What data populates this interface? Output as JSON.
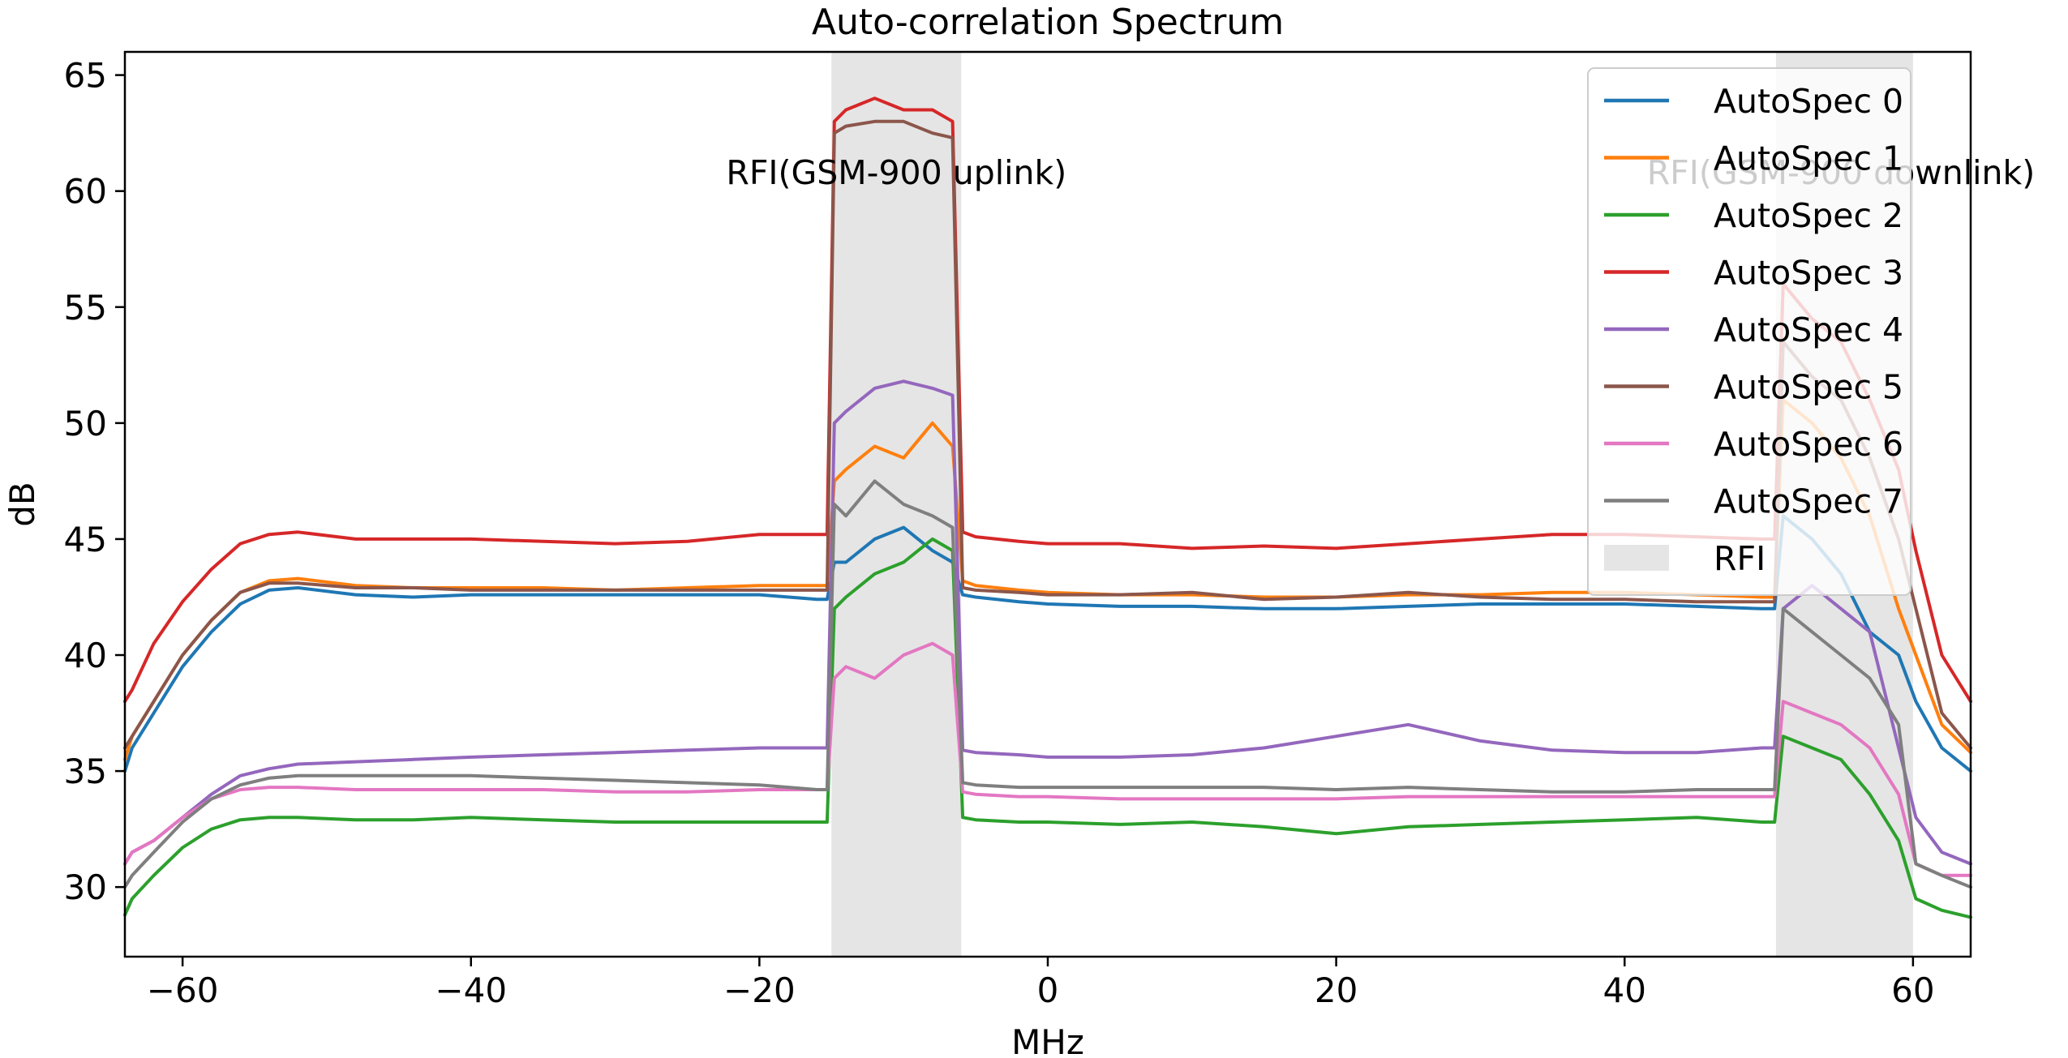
{
  "chart_data": {
    "type": "line",
    "title": "Auto-correlation Spectrum",
    "xlabel": "MHz",
    "ylabel": "dB",
    "xlim": [
      -64,
      64
    ],
    "ylim": [
      27,
      66
    ],
    "xticks": [
      -60,
      -40,
      -20,
      0,
      20,
      40,
      60
    ],
    "yticks": [
      30,
      35,
      40,
      45,
      50,
      55,
      60,
      65
    ],
    "x_tick_labels": [
      "−60",
      "−40",
      "−20",
      "0",
      "20",
      "40",
      "60"
    ],
    "y_tick_labels": [
      "30",
      "35",
      "40",
      "45",
      "50",
      "55",
      "60",
      "65"
    ],
    "grid": false,
    "legend_position": "top-right",
    "rfi_label": "RFI",
    "rfi_color": "#e5e5e5",
    "shaded_regions": [
      {
        "name": "RFI",
        "x_range": [
          -15,
          -6
        ]
      },
      {
        "name": "RFI",
        "x_range": [
          50.5,
          60
        ]
      }
    ],
    "annotations": [
      {
        "text": "RFI(GSM-900 uplink)",
        "x": -10.5,
        "y": 60.3
      },
      {
        "text": "RFI(GSM-900 downlink)",
        "x": 55,
        "y": 60.3
      }
    ],
    "x": [
      -64,
      -63.5,
      -62,
      -60,
      -58,
      -56,
      -54,
      -52,
      -48,
      -44,
      -40,
      -35,
      -30,
      -25,
      -20,
      -16,
      -15.3,
      -14.8,
      -14,
      -12,
      -10,
      -8,
      -6.6,
      -5.9,
      -5,
      -2,
      0,
      5,
      10,
      15,
      20,
      25,
      30,
      35,
      40,
      45,
      49.5,
      50.4,
      51,
      53,
      55,
      57,
      59,
      60.2,
      62,
      64
    ],
    "series": [
      {
        "name": "AutoSpec 0",
        "color": "#1f77b4",
        "values": [
          35,
          36,
          37.5,
          39.5,
          41,
          42.2,
          42.8,
          42.9,
          42.6,
          42.5,
          42.6,
          42.6,
          42.6,
          42.6,
          42.6,
          42.4,
          42.4,
          44,
          44,
          45,
          45.5,
          44.5,
          44,
          42.6,
          42.5,
          42.3,
          42.2,
          42.1,
          42.1,
          42.0,
          42.0,
          42.1,
          42.2,
          42.2,
          42.2,
          42.1,
          42.0,
          42.0,
          46,
          45,
          43.5,
          41,
          40,
          38,
          36,
          35
        ]
      },
      {
        "name": "AutoSpec 1",
        "color": "#ff7f0e",
        "values": [
          35.5,
          36.5,
          38,
          40,
          41.5,
          42.7,
          43.2,
          43.3,
          43,
          42.9,
          42.9,
          42.9,
          42.8,
          42.9,
          43.0,
          43.0,
          43.0,
          47.5,
          48,
          49,
          48.5,
          50,
          49,
          43.2,
          43.0,
          42.8,
          42.7,
          42.6,
          42.6,
          42.5,
          42.5,
          42.6,
          42.6,
          42.7,
          42.7,
          42.6,
          42.5,
          42.5,
          51,
          50,
          48.5,
          46,
          42,
          40,
          37,
          35.8
        ]
      },
      {
        "name": "AutoSpec 2",
        "color": "#2ca02c",
        "values": [
          28.8,
          29.5,
          30.5,
          31.7,
          32.5,
          32.9,
          33.0,
          33.0,
          32.9,
          32.9,
          33.0,
          32.9,
          32.8,
          32.8,
          32.8,
          32.8,
          32.8,
          42,
          42.5,
          43.5,
          44,
          45,
          44.5,
          33.0,
          32.9,
          32.8,
          32.8,
          32.7,
          32.8,
          32.6,
          32.3,
          32.6,
          32.7,
          32.8,
          32.9,
          33.0,
          32.8,
          32.8,
          36.5,
          36,
          35.5,
          34,
          32,
          29.5,
          29,
          28.7
        ]
      },
      {
        "name": "AutoSpec 3",
        "color": "#d62728",
        "values": [
          38,
          38.5,
          40.5,
          42.3,
          43.7,
          44.8,
          45.2,
          45.3,
          45.0,
          45.0,
          45.0,
          44.9,
          44.8,
          44.9,
          45.2,
          45.2,
          45.2,
          63,
          63.5,
          64,
          63.5,
          63.5,
          63,
          45.3,
          45.1,
          44.9,
          44.8,
          44.8,
          44.6,
          44.7,
          44.6,
          44.8,
          45.0,
          45.2,
          45.2,
          45.1,
          45.0,
          45.0,
          56,
          54.5,
          53.5,
          51,
          48,
          44.5,
          40,
          38
        ]
      },
      {
        "name": "AutoSpec 4",
        "color": "#9467bd",
        "values": [
          31,
          31.5,
          32,
          33,
          34,
          34.8,
          35.1,
          35.3,
          35.4,
          35.5,
          35.6,
          35.7,
          35.8,
          35.9,
          36.0,
          36.0,
          36.0,
          50,
          50.5,
          51.5,
          51.8,
          51.5,
          51.2,
          35.9,
          35.8,
          35.7,
          35.6,
          35.6,
          35.7,
          36.0,
          36.5,
          37.0,
          36.3,
          35.9,
          35.8,
          35.8,
          36.0,
          36.0,
          42,
          43,
          42,
          41,
          36,
          33,
          31.5,
          31
        ]
      },
      {
        "name": "AutoSpec 5",
        "color": "#8c564b",
        "values": [
          36,
          36.5,
          38,
          40,
          41.5,
          42.7,
          43.1,
          43.1,
          42.9,
          42.9,
          42.8,
          42.8,
          42.8,
          42.8,
          42.8,
          42.8,
          42.8,
          62.5,
          62.8,
          63,
          63,
          62.5,
          62.3,
          42.9,
          42.8,
          42.7,
          42.6,
          42.6,
          42.7,
          42.4,
          42.5,
          42.7,
          42.5,
          42.4,
          42.4,
          42.3,
          42.3,
          42.3,
          53.5,
          52,
          51,
          48.5,
          45,
          42,
          37.5,
          36
        ]
      },
      {
        "name": "AutoSpec 6",
        "color": "#e377c2",
        "values": [
          31,
          31.5,
          32,
          33,
          33.8,
          34.2,
          34.3,
          34.3,
          34.2,
          34.2,
          34.2,
          34.2,
          34.1,
          34.1,
          34.2,
          34.2,
          34.2,
          39,
          39.5,
          39,
          40,
          40.5,
          40,
          34.1,
          34.0,
          33.9,
          33.9,
          33.8,
          33.8,
          33.8,
          33.8,
          33.9,
          33.9,
          33.9,
          33.9,
          33.9,
          33.9,
          33.9,
          38,
          37.5,
          37,
          36,
          34,
          31,
          30.5,
          30.5
        ]
      },
      {
        "name": "AutoSpec 7",
        "color": "#7f7f7f",
        "values": [
          30,
          30.5,
          31.5,
          32.8,
          33.8,
          34.4,
          34.7,
          34.8,
          34.8,
          34.8,
          34.8,
          34.7,
          34.6,
          34.5,
          34.4,
          34.2,
          34.2,
          46.5,
          46,
          47.5,
          46.5,
          46,
          45.5,
          34.5,
          34.4,
          34.3,
          34.3,
          34.3,
          34.3,
          34.3,
          34.2,
          34.3,
          34.2,
          34.1,
          34.1,
          34.2,
          34.2,
          34.2,
          42,
          41,
          40,
          39,
          37,
          31,
          30.5,
          30
        ]
      }
    ]
  }
}
